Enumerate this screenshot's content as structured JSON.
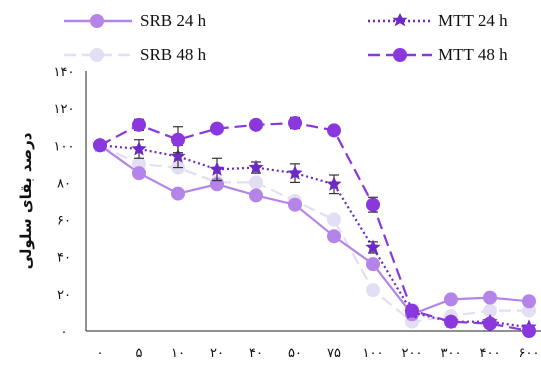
{
  "chart_data": {
    "type": "line",
    "categories": [
      "۰",
      "۵",
      "۱۰",
      "۲۰",
      "۴۰",
      "۵۰",
      "۷۵",
      "۱۰۰",
      "۲۰۰",
      "۳۰۰",
      "۴۰۰",
      "۶۰۰"
    ],
    "ylabel": "درصد بقای سلولی",
    "xlabel": "",
    "ylim": [
      0,
      140
    ],
    "yticks": [
      {
        "value": 0,
        "label": "۰"
      },
      {
        "value": 20,
        "label": "۲۰"
      },
      {
        "value": 40,
        "label": "۴۰"
      },
      {
        "value": 60,
        "label": "۶۰"
      },
      {
        "value": 80,
        "label": "۸۰"
      },
      {
        "value": 100,
        "label": "۱۰۰"
      },
      {
        "value": 120,
        "label": "۱۲۰"
      },
      {
        "value": 140,
        "label": "۱۴۰"
      }
    ],
    "legend_position": "top",
    "series": [
      {
        "name": "SRB 24 h",
        "color": "#b484e8",
        "style": "solid",
        "marker": "circle",
        "values": [
          100,
          85,
          74,
          79,
          73,
          68,
          51,
          36,
          9,
          17,
          18,
          16
        ],
        "errors": [
          0,
          0,
          0,
          0,
          0,
          0,
          0,
          0,
          0,
          0,
          0,
          0
        ]
      },
      {
        "name": "MTT 24 h",
        "color": "#6d28c6",
        "style": "dotted",
        "marker": "star",
        "values": [
          100,
          98,
          94,
          87,
          88,
          85,
          79,
          45,
          10,
          5,
          5,
          2
        ],
        "errors": [
          0,
          5,
          6,
          6,
          3,
          5,
          5,
          3,
          2,
          1,
          1,
          1
        ]
      },
      {
        "name": "SRB 48 h",
        "color": "#e4def5",
        "style": "dashed",
        "marker": "circle",
        "values": [
          100,
          90,
          88,
          80,
          80,
          70,
          60,
          22,
          5,
          8,
          11,
          11
        ],
        "errors": [
          0,
          0,
          0,
          0,
          0,
          0,
          0,
          0,
          0,
          0,
          0,
          0
        ]
      },
      {
        "name": "MTT 48 h",
        "color": "#8a38dd",
        "style": "dashed",
        "marker": "circle",
        "values": [
          100,
          111,
          103,
          109,
          111,
          112,
          108,
          68,
          11,
          5,
          4,
          0
        ],
        "errors": [
          0,
          3,
          7,
          2,
          2,
          3,
          2,
          4,
          2,
          1,
          1,
          1
        ]
      }
    ]
  }
}
